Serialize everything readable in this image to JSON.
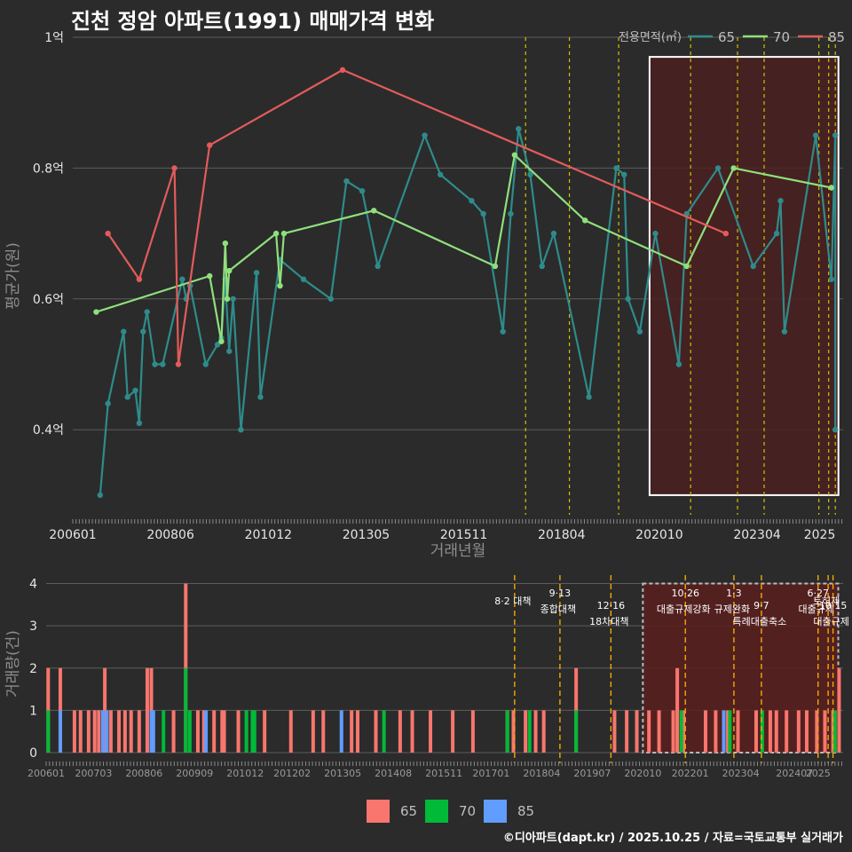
{
  "page_title": "진천 정암 아파트(1991) 매매가격 변화",
  "credit": "©디아파트(dapt.kr) / 2025.10.25 / 자료=국토교통부 실거래가",
  "colors": {
    "background": "#2b2b2b",
    "65": "#2f8b8b",
    "70": "#8fe07c",
    "85": "#e35b5b",
    "bar65": "#f8766d",
    "bar70": "#00ba38",
    "bar85": "#619cff",
    "policy_line_top": "#d4c000",
    "policy_line_bottom": "#f2a900",
    "highlight_fill": "#4a2020",
    "highlight_border": "#ffffff"
  },
  "chart_data": [
    {
      "type": "line",
      "title": "진천 정암 아파트(1991) 매매가격 변화",
      "xlabel": "거래년월",
      "ylabel": "평균가(원)",
      "x_range": [
        2006.0,
        2025.7
      ],
      "ylim": [
        0.27,
        1.0
      ],
      "x_tick_values": [
        2006.0,
        2008.5,
        2011.0,
        2013.5,
        2016.0,
        2018.5,
        2021.0,
        2023.5,
        2025.1
      ],
      "x_tick_labels": [
        "200601",
        "200806",
        "201012",
        "201305",
        "201511",
        "201804",
        "202010",
        "202304",
        "2025"
      ],
      "y_tick_values": [
        0.4,
        0.6,
        0.8,
        1.0
      ],
      "y_tick_labels": [
        "0.4억",
        "0.6억",
        "0.8억",
        "1억"
      ],
      "legend_title": "전용면적(㎡)",
      "series": [
        {
          "name": "65",
          "points": [
            [
              2006.7,
              0.3
            ],
            [
              2006.9,
              0.44
            ],
            [
              2007.3,
              0.55
            ],
            [
              2007.4,
              0.45
            ],
            [
              2007.6,
              0.46
            ],
            [
              2007.7,
              0.41
            ],
            [
              2007.8,
              0.55
            ],
            [
              2007.9,
              0.58
            ],
            [
              2008.1,
              0.5
            ],
            [
              2008.3,
              0.5
            ],
            [
              2008.8,
              0.63
            ],
            [
              2008.9,
              0.6
            ],
            [
              2009.0,
              0.62
            ],
            [
              2009.4,
              0.5
            ],
            [
              2009.7,
              0.53
            ],
            [
              2009.8,
              0.54
            ],
            [
              2009.9,
              0.63
            ],
            [
              2010.0,
              0.52
            ],
            [
              2010.1,
              0.6
            ],
            [
              2010.3,
              0.4
            ],
            [
              2010.7,
              0.64
            ],
            [
              2010.8,
              0.45
            ],
            [
              2011.3,
              0.66
            ],
            [
              2011.9,
              0.63
            ],
            [
              2012.6,
              0.6
            ],
            [
              2013.0,
              0.78
            ],
            [
              2013.4,
              0.765
            ],
            [
              2013.8,
              0.65
            ],
            [
              2015.0,
              0.85
            ],
            [
              2015.4,
              0.79
            ],
            [
              2016.2,
              0.75
            ],
            [
              2016.5,
              0.73
            ],
            [
              2017.0,
              0.55
            ],
            [
              2017.2,
              0.73
            ],
            [
              2017.4,
              0.86
            ],
            [
              2017.7,
              0.79
            ],
            [
              2018.0,
              0.65
            ],
            [
              2018.3,
              0.7
            ],
            [
              2019.2,
              0.45
            ],
            [
              2019.9,
              0.8
            ],
            [
              2020.1,
              0.79
            ],
            [
              2020.2,
              0.6
            ],
            [
              2020.5,
              0.55
            ],
            [
              2020.9,
              0.7
            ],
            [
              2021.5,
              0.5
            ],
            [
              2021.7,
              0.73
            ],
            [
              2022.5,
              0.8
            ],
            [
              2023.4,
              0.65
            ],
            [
              2024.0,
              0.7
            ],
            [
              2024.1,
              0.75
            ],
            [
              2024.2,
              0.55
            ],
            [
              2025.0,
              0.85
            ],
            [
              2025.4,
              0.63
            ],
            [
              2025.5,
              0.85
            ],
            [
              2025.5,
              0.4
            ]
          ]
        },
        {
          "name": "70",
          "points": [
            [
              2006.6,
              0.58
            ],
            [
              2009.5,
              0.635
            ],
            [
              2009.8,
              0.535
            ],
            [
              2009.9,
              0.685
            ],
            [
              2009.95,
              0.6
            ],
            [
              2010.0,
              0.643
            ],
            [
              2011.2,
              0.7
            ],
            [
              2011.3,
              0.62
            ],
            [
              2011.4,
              0.7
            ],
            [
              2013.7,
              0.735
            ],
            [
              2016.8,
              0.65
            ],
            [
              2017.3,
              0.82
            ],
            [
              2019.1,
              0.72
            ],
            [
              2021.7,
              0.65
            ],
            [
              2022.9,
              0.8
            ],
            [
              2025.4,
              0.77
            ]
          ]
        },
        {
          "name": "85",
          "points": [
            [
              2006.9,
              0.7
            ],
            [
              2007.7,
              0.63
            ],
            [
              2008.6,
              0.8
            ],
            [
              2008.7,
              0.5
            ],
            [
              2009.5,
              0.835
            ],
            [
              2012.9,
              0.95
            ],
            [
              2022.7,
              0.7
            ]
          ]
        }
      ],
      "policy_dates": [
        2017.58,
        2018.7,
        2019.96,
        2021.8,
        2023.0,
        2023.68,
        2025.08,
        2025.33,
        2025.5
      ],
      "highlight": {
        "x0": 2020.75,
        "x1": 2025.58,
        "y0": 0.3,
        "y1": 0.97
      }
    },
    {
      "type": "bar",
      "ylabel": "거래량(건)",
      "x_range": [
        2006.0,
        2025.7
      ],
      "ylim": [
        0,
        4.2
      ],
      "y_tick_values": [
        0,
        1,
        2,
        3,
        4
      ],
      "y_tick_labels": [
        "0",
        "1",
        "2",
        "3",
        "4"
      ],
      "x_tick_values": [
        2006.0,
        2007.17,
        2008.42,
        2009.67,
        2010.92,
        2012.08,
        2013.33,
        2014.58,
        2015.83,
        2017.0,
        2018.25,
        2019.5,
        2020.75,
        2021.92,
        2023.17,
        2024.5,
        2025.08
      ],
      "x_tick_labels": [
        "200601",
        "200703",
        "200806",
        "200909",
        "201012",
        "201202",
        "201305",
        "201408",
        "201511",
        "201701",
        "201804",
        "201907",
        "202010",
        "202201",
        "202304",
        "202407",
        "2025"
      ],
      "legend_items": [
        "65",
        "70",
        "85"
      ],
      "series": [
        {
          "name": "65",
          "points": [
            [
              2006.05,
              2
            ],
            [
              2006.35,
              2
            ],
            [
              2006.7,
              1
            ],
            [
              2006.85,
              1
            ],
            [
              2007.05,
              1
            ],
            [
              2007.2,
              1
            ],
            [
              2007.3,
              1
            ],
            [
              2007.45,
              2
            ],
            [
              2007.6,
              1
            ],
            [
              2007.8,
              1
            ],
            [
              2007.95,
              1
            ],
            [
              2008.1,
              1
            ],
            [
              2008.3,
              1
            ],
            [
              2008.5,
              2
            ],
            [
              2008.6,
              2
            ],
            [
              2009.15,
              1
            ],
            [
              2009.45,
              4
            ],
            [
              2009.75,
              1
            ],
            [
              2009.9,
              1
            ],
            [
              2010.15,
              1
            ],
            [
              2010.35,
              1
            ],
            [
              2010.4,
              1
            ],
            [
              2010.75,
              1
            ],
            [
              2011.4,
              1
            ],
            [
              2012.05,
              1
            ],
            [
              2012.6,
              1
            ],
            [
              2012.85,
              1
            ],
            [
              2013.55,
              1
            ],
            [
              2013.7,
              1
            ],
            [
              2014.15,
              1
            ],
            [
              2014.75,
              1
            ],
            [
              2015.05,
              1
            ],
            [
              2015.5,
              1
            ],
            [
              2016.05,
              1
            ],
            [
              2016.55,
              1
            ],
            [
              2017.4,
              1
            ],
            [
              2017.55,
              1
            ],
            [
              2017.85,
              1
            ],
            [
              2018.1,
              1
            ],
            [
              2018.3,
              1
            ],
            [
              2019.1,
              2
            ],
            [
              2020.05,
              1
            ],
            [
              2020.35,
              1
            ],
            [
              2020.6,
              1
            ],
            [
              2020.9,
              1
            ],
            [
              2021.15,
              1
            ],
            [
              2021.5,
              1
            ],
            [
              2021.6,
              2
            ],
            [
              2021.75,
              1
            ],
            [
              2022.3,
              1
            ],
            [
              2022.55,
              1
            ],
            [
              2022.85,
              1
            ],
            [
              2023.1,
              1
            ],
            [
              2023.55,
              1
            ],
            [
              2023.9,
              1
            ],
            [
              2024.05,
              1
            ],
            [
              2024.3,
              1
            ],
            [
              2024.6,
              1
            ],
            [
              2024.8,
              1
            ],
            [
              2025.05,
              1
            ],
            [
              2025.25,
              1
            ],
            [
              2025.45,
              1
            ],
            [
              2025.6,
              2
            ]
          ]
        },
        {
          "name": "70",
          "points": [
            [
              2006.05,
              1
            ],
            [
              2008.9,
              1
            ],
            [
              2009.45,
              2
            ],
            [
              2009.55,
              1
            ],
            [
              2010.95,
              1
            ],
            [
              2011.1,
              1
            ],
            [
              2011.15,
              1
            ],
            [
              2014.35,
              1
            ],
            [
              2017.4,
              1
            ],
            [
              2017.95,
              1
            ],
            [
              2019.1,
              1
            ],
            [
              2021.7,
              1
            ],
            [
              2022.9,
              1
            ],
            [
              2023.7,
              1
            ],
            [
              2025.5,
              1
            ]
          ]
        },
        {
          "name": "85",
          "points": [
            [
              2006.35,
              1
            ],
            [
              2007.4,
              1
            ],
            [
              2007.5,
              1
            ],
            [
              2008.6,
              1
            ],
            [
              2008.65,
              1
            ],
            [
              2009.95,
              1
            ],
            [
              2013.3,
              1
            ],
            [
              2022.75,
              1
            ]
          ]
        }
      ],
      "annotations": [
        {
          "x": 2017.58,
          "date": "",
          "label": "8·2 대책"
        },
        {
          "x": 2018.7,
          "date": "9·13",
          "label": "종합대책"
        },
        {
          "x": 2019.96,
          "date": "12·16",
          "label": "18차대책"
        },
        {
          "x": 2021.8,
          "date": "10·26",
          "label": "대출규제강화"
        },
        {
          "x": 2023.0,
          "date": "1·3",
          "label": "규제완화"
        },
        {
          "x": 2023.68,
          "date": "9·7",
          "label": "특례대출축소"
        },
        {
          "x": 2025.08,
          "date": "6·27",
          "label": "대출규제"
        },
        {
          "x": 2025.33,
          "date": "",
          "label": "토허제"
        },
        {
          "x": 2025.45,
          "date": "10·15",
          "label": "대출규제"
        }
      ],
      "highlight": {
        "x0": 2020.75,
        "x1": 2025.58
      }
    }
  ]
}
